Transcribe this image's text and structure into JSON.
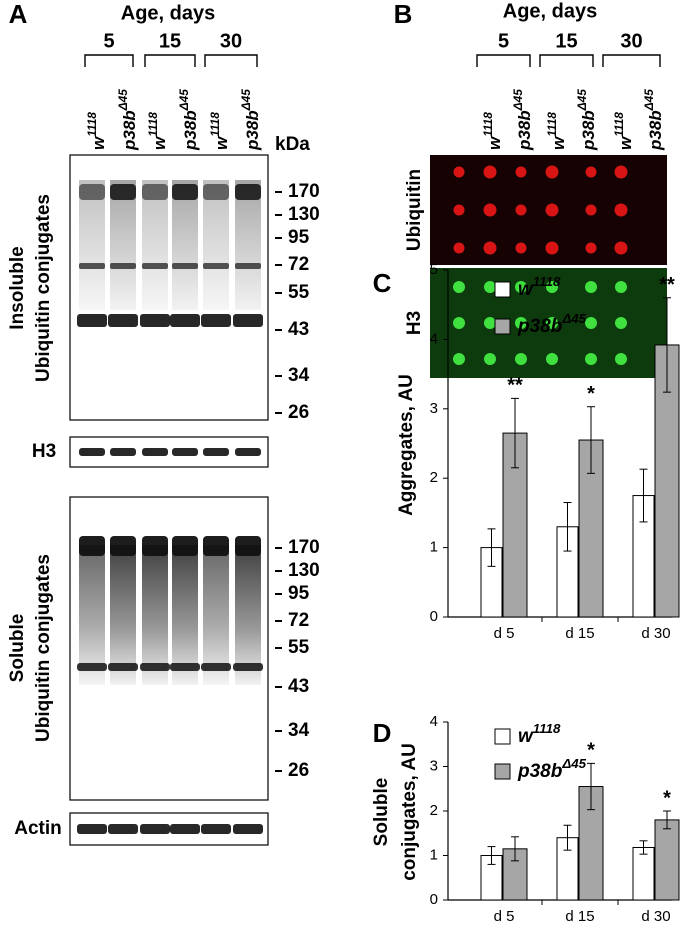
{
  "panel_a": {
    "label": "A",
    "header": "Age, days",
    "ages": [
      "5",
      "15",
      "30"
    ],
    "lanes": [
      {
        "base": "w",
        "sup": "1118"
      },
      {
        "base": "p38b",
        "sup": "Δ45"
      },
      {
        "base": "w",
        "sup": "1118"
      },
      {
        "base": "p38b",
        "sup": "Δ45"
      },
      {
        "base": "w",
        "sup": "1118"
      },
      {
        "base": "p38b",
        "sup": "Δ45"
      }
    ],
    "unit": "kDa",
    "blots": [
      {
        "label": [
          "Insoluble",
          "Ubiquitin conjugates"
        ],
        "markers": [
          170,
          130,
          95,
          72,
          55,
          43,
          34,
          26
        ]
      },
      {
        "label": [
          "H3"
        ]
      },
      {
        "label": [
          "Soluble",
          "Ubiquitin conjugates"
        ],
        "markers": [
          170,
          130,
          95,
          72,
          55,
          43,
          34,
          26
        ]
      },
      {
        "label": [
          "Actin"
        ]
      }
    ]
  },
  "panel_b": {
    "label": "B",
    "header": "Age, days",
    "ages": [
      "5",
      "15",
      "30"
    ],
    "lanes": [
      {
        "base": "w",
        "sup": "1118"
      },
      {
        "base": "p38b",
        "sup": "Δ45"
      },
      {
        "base": "w",
        "sup": "1118"
      },
      {
        "base": "p38b",
        "sup": "Δ45"
      },
      {
        "base": "w",
        "sup": "1118"
      },
      {
        "base": "p38b",
        "sup": "Δ45"
      }
    ],
    "blots": [
      {
        "label": "Ubiquitin"
      },
      {
        "label": "H3"
      }
    ]
  },
  "chart_data": [
    {
      "type": "bar",
      "label": "C",
      "ylabel": [
        "Aggregates, AU"
      ],
      "categories": [
        "d 5",
        "d 15",
        "d 30"
      ],
      "ylim": [
        0,
        5
      ],
      "yticks": [
        0,
        1,
        2,
        3,
        4,
        5
      ],
      "series": [
        {
          "name": "w",
          "name_sup": "1118",
          "color": "#ffffff",
          "values": [
            1.0,
            1.3,
            1.75
          ],
          "errors": [
            0.27,
            0.35,
            0.38
          ]
        },
        {
          "name": "p38b",
          "name_sup": "Δ45",
          "color": "#a6a6a6",
          "values": [
            2.65,
            2.55,
            3.92
          ],
          "errors": [
            0.5,
            0.48,
            0.68
          ],
          "annotations": [
            "**",
            "*",
            "**"
          ]
        }
      ]
    },
    {
      "type": "bar",
      "label": "D",
      "ylabel": [
        "Soluble",
        "conjugates, AU"
      ],
      "categories": [
        "d 5",
        "d 15",
        "d 30"
      ],
      "ylim": [
        0,
        4
      ],
      "yticks": [
        0,
        1,
        2,
        3,
        4
      ],
      "series": [
        {
          "name": "w",
          "name_sup": "1118",
          "color": "#ffffff",
          "values": [
            1.0,
            1.4,
            1.18
          ],
          "errors": [
            0.2,
            0.28,
            0.15
          ]
        },
        {
          "name": "p38b",
          "name_sup": "Δ45",
          "color": "#a6a6a6",
          "values": [
            1.15,
            2.55,
            1.8
          ],
          "errors": [
            0.27,
            0.52,
            0.2
          ],
          "annotations": [
            null,
            "*",
            "*"
          ]
        }
      ]
    }
  ]
}
